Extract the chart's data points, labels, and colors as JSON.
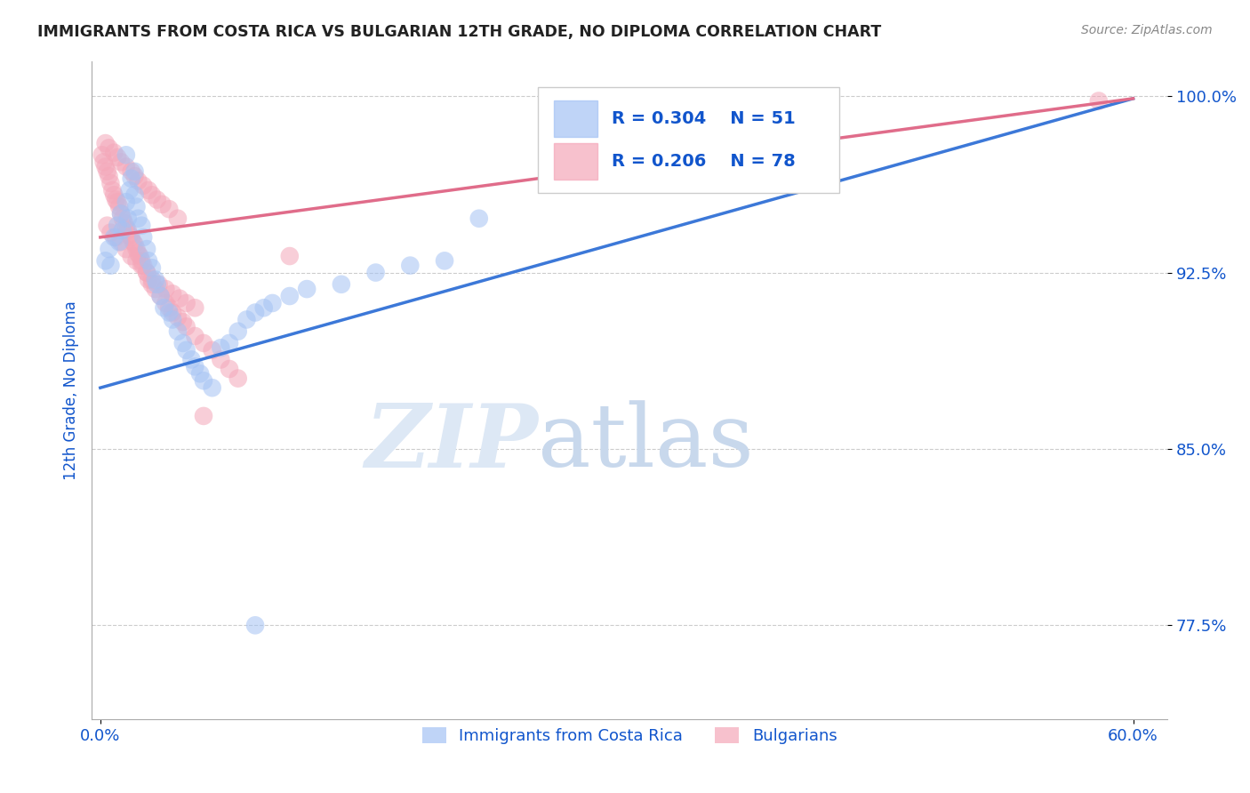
{
  "title": "IMMIGRANTS FROM COSTA RICA VS BULGARIAN 12TH GRADE, NO DIPLOMA CORRELATION CHART",
  "source_text": "Source: ZipAtlas.com",
  "ylabel": "12th Grade, No Diploma",
  "xlim": [
    -0.005,
    0.62
  ],
  "ylim": [
    0.735,
    1.015
  ],
  "xticks": [
    0.0,
    0.6
  ],
  "xticklabels": [
    "0.0%",
    "60.0%"
  ],
  "yticks": [
    0.775,
    0.85,
    0.925,
    1.0
  ],
  "yticklabels": [
    "77.5%",
    "85.0%",
    "92.5%",
    "100.0%"
  ],
  "legend_r1": "R = 0.304",
  "legend_n1": "N = 51",
  "legend_r2": "R = 0.206",
  "legend_n2": "N = 78",
  "color_blue": "#a4c2f4",
  "color_pink": "#f4a7b9",
  "line_blue": "#3c78d8",
  "line_pink": "#e06c8a",
  "title_color": "#222222",
  "axis_label_color": "#1155cc",
  "tick_label_color": "#1155cc",
  "blue_trend_x0": 0.0,
  "blue_trend_x1": 0.6,
  "blue_trend_y0": 0.876,
  "blue_trend_y1": 0.999,
  "pink_trend_x0": 0.0,
  "pink_trend_x1": 0.6,
  "pink_trend_y0": 0.94,
  "pink_trend_y1": 0.999,
  "blue_scatter_x": [
    0.003,
    0.005,
    0.006,
    0.008,
    0.01,
    0.011,
    0.012,
    0.013,
    0.015,
    0.016,
    0.017,
    0.018,
    0.02,
    0.021,
    0.022,
    0.024,
    0.025,
    0.027,
    0.028,
    0.03,
    0.032,
    0.033,
    0.035,
    0.037,
    0.04,
    0.042,
    0.045,
    0.048,
    0.05,
    0.053,
    0.055,
    0.058,
    0.06,
    0.065,
    0.07,
    0.075,
    0.08,
    0.085,
    0.09,
    0.095,
    0.1,
    0.11,
    0.12,
    0.14,
    0.16,
    0.18,
    0.2,
    0.22,
    0.015,
    0.02,
    0.09
  ],
  "blue_scatter_y": [
    0.93,
    0.935,
    0.928,
    0.94,
    0.945,
    0.938,
    0.95,
    0.943,
    0.955,
    0.948,
    0.96,
    0.965,
    0.958,
    0.953,
    0.948,
    0.945,
    0.94,
    0.935,
    0.93,
    0.927,
    0.922,
    0.92,
    0.915,
    0.91,
    0.908,
    0.905,
    0.9,
    0.895,
    0.892,
    0.888,
    0.885,
    0.882,
    0.879,
    0.876,
    0.893,
    0.895,
    0.9,
    0.905,
    0.908,
    0.91,
    0.912,
    0.915,
    0.918,
    0.92,
    0.925,
    0.928,
    0.93,
    0.948,
    0.975,
    0.968,
    0.775
  ],
  "pink_scatter_x": [
    0.001,
    0.002,
    0.003,
    0.004,
    0.005,
    0.006,
    0.007,
    0.008,
    0.009,
    0.01,
    0.011,
    0.012,
    0.013,
    0.014,
    0.015,
    0.016,
    0.017,
    0.018,
    0.019,
    0.02,
    0.021,
    0.022,
    0.023,
    0.024,
    0.025,
    0.027,
    0.028,
    0.03,
    0.032,
    0.035,
    0.038,
    0.04,
    0.042,
    0.045,
    0.048,
    0.05,
    0.055,
    0.06,
    0.065,
    0.07,
    0.075,
    0.08,
    0.003,
    0.005,
    0.008,
    0.01,
    0.012,
    0.015,
    0.018,
    0.02,
    0.022,
    0.025,
    0.028,
    0.03,
    0.033,
    0.036,
    0.04,
    0.045,
    0.11,
    0.33,
    0.004,
    0.006,
    0.009,
    0.012,
    0.015,
    0.018,
    0.021,
    0.024,
    0.027,
    0.03,
    0.034,
    0.038,
    0.042,
    0.046,
    0.05,
    0.055,
    0.06,
    0.58
  ],
  "pink_scatter_y": [
    0.975,
    0.972,
    0.97,
    0.968,
    0.966,
    0.963,
    0.96,
    0.958,
    0.956,
    0.955,
    0.953,
    0.95,
    0.948,
    0.946,
    0.944,
    0.943,
    0.941,
    0.94,
    0.938,
    0.937,
    0.935,
    0.933,
    0.932,
    0.93,
    0.928,
    0.925,
    0.922,
    0.92,
    0.918,
    0.915,
    0.912,
    0.91,
    0.908,
    0.906,
    0.904,
    0.902,
    0.898,
    0.895,
    0.892,
    0.888,
    0.884,
    0.88,
    0.98,
    0.978,
    0.976,
    0.974,
    0.972,
    0.97,
    0.968,
    0.966,
    0.964,
    0.962,
    0.96,
    0.958,
    0.956,
    0.954,
    0.952,
    0.948,
    0.932,
    0.988,
    0.945,
    0.942,
    0.94,
    0.938,
    0.935,
    0.932,
    0.93,
    0.928,
    0.925,
    0.922,
    0.92,
    0.918,
    0.916,
    0.914,
    0.912,
    0.91,
    0.864,
    0.998
  ]
}
